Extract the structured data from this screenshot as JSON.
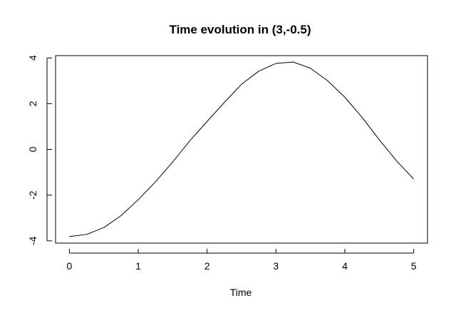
{
  "chart_data": {
    "type": "line",
    "title": "Time evolution in (3,-0.5)",
    "xlabel": "Time",
    "ylabel": "",
    "xlim": [
      -0.2,
      5.2
    ],
    "ylim": [
      -4.1,
      4.1
    ],
    "xticks": [
      0,
      1,
      2,
      3,
      4,
      5
    ],
    "yticks": [
      -4,
      -2,
      0,
      2,
      4
    ],
    "xtick_labels": [
      "0",
      "1",
      "2",
      "3",
      "4",
      "5"
    ],
    "ytick_labels": [
      "-4",
      "-2",
      "0",
      "2",
      "4"
    ],
    "grid": false,
    "series": [
      {
        "x": [
          0,
          0.25,
          0.5,
          0.75,
          1.0,
          1.25,
          1.5,
          1.75,
          2.0,
          2.25,
          2.5,
          2.75,
          3.0,
          3.25,
          3.5,
          3.75,
          4.0,
          4.25,
          4.5,
          4.75,
          5.0
        ],
        "y": [
          -3.81,
          -3.72,
          -3.42,
          -2.9,
          -2.2,
          -1.42,
          -0.55,
          0.38,
          1.22,
          2.05,
          2.85,
          3.42,
          3.76,
          3.82,
          3.55,
          3.0,
          2.28,
          1.4,
          0.42,
          -0.5,
          -1.3
        ]
      }
    ]
  }
}
